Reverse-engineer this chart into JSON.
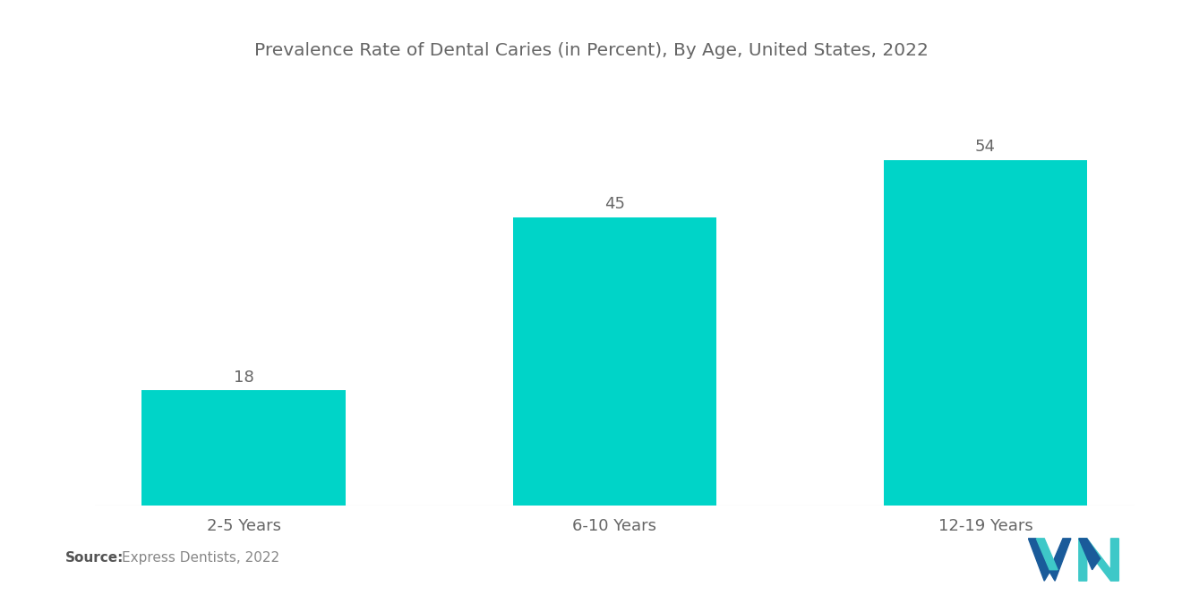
{
  "title": "Prevalence Rate of Dental Caries (in Percent), By Age, United States, 2022",
  "categories": [
    "2-5 Years",
    "6-10 Years",
    "12-19 Years"
  ],
  "values": [
    18,
    45,
    54
  ],
  "bar_color": "#00D4C8",
  "background_color": "#ffffff",
  "title_color": "#666666",
  "label_color": "#666666",
  "value_color": "#666666",
  "source_bold": "Source:",
  "source_text": "Express Dentists, 2022",
  "title_fontsize": 14.5,
  "label_fontsize": 13,
  "value_fontsize": 13,
  "source_fontsize": 11,
  "ylim": [
    0,
    65
  ],
  "bar_width": 0.55,
  "logo_dark_blue": "#1a5b9a",
  "logo_teal": "#3ec8c8"
}
